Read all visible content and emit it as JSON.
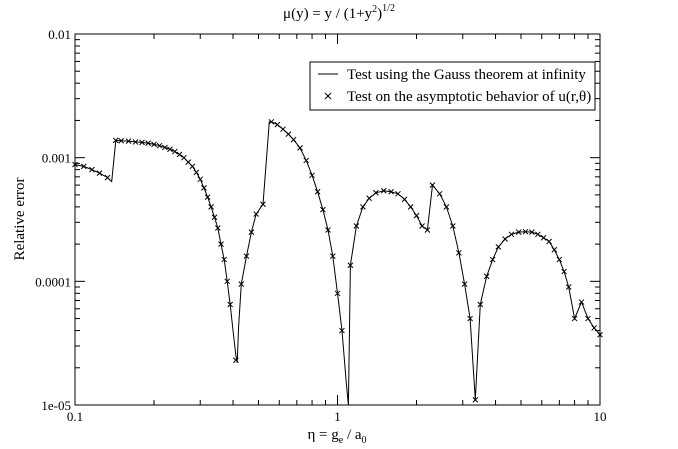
{
  "chart_data": {
    "type": "line",
    "title": {
      "mu": "μ(y) = y / (1+y",
      "sq": "2",
      "close": ")",
      "half": "1/2"
    },
    "xlabel": {
      "eta": "η = g",
      "e": "e",
      "mid": " / a",
      "zero": "0"
    },
    "ylabel": "Relative error",
    "x_scale": "log",
    "y_scale": "log",
    "xlim": [
      0.1,
      10
    ],
    "ylim": [
      1e-05,
      0.01
    ],
    "x_ticks": [
      {
        "value": 0.1,
        "label": "0.1"
      },
      {
        "value": 1,
        "label": "1"
      },
      {
        "value": 10,
        "label": "10"
      }
    ],
    "y_ticks": [
      {
        "value": 1e-05,
        "label": "1e-05"
      },
      {
        "value": 0.0001,
        "label": "0.0001"
      },
      {
        "value": 0.001,
        "label": "0.001"
      },
      {
        "value": 0.01,
        "label": "0.01"
      }
    ],
    "grid": false,
    "legend_position": "top-right",
    "legend": [
      {
        "label": "Test using the Gauss theorem at infinity",
        "marker": "line"
      },
      {
        "label": "Test on the asymptotic behavior of u(r,θ)",
        "marker": "x"
      }
    ],
    "series": [
      {
        "style": "line",
        "color": "#000000",
        "x": [
          0.1,
          0.108,
          0.116,
          0.124,
          0.133,
          0.138,
          0.143,
          0.15,
          0.16,
          0.17,
          0.18,
          0.19,
          0.2,
          0.21,
          0.22,
          0.23,
          0.24,
          0.25,
          0.26,
          0.27,
          0.28,
          0.29,
          0.3,
          0.31,
          0.32,
          0.33,
          0.34,
          0.35,
          0.36,
          0.37,
          0.38,
          0.39,
          0.4,
          0.41,
          0.415,
          0.42,
          0.43,
          0.45,
          0.47,
          0.49,
          0.52,
          0.55,
          0.56,
          0.59,
          0.62,
          0.65,
          0.68,
          0.72,
          0.76,
          0.8,
          0.84,
          0.88,
          0.92,
          0.96,
          1.0,
          1.04,
          1.08,
          1.1,
          1.12,
          1.18,
          1.25,
          1.32,
          1.4,
          1.5,
          1.6,
          1.7,
          1.8,
          1.9,
          2.0,
          2.1,
          2.2,
          2.3,
          2.45,
          2.6,
          2.75,
          2.9,
          3.05,
          3.2,
          3.35,
          3.5,
          3.7,
          3.9,
          4.1,
          4.35,
          4.6,
          4.9,
          5.2,
          5.5,
          5.8,
          6.1,
          6.4,
          6.7,
          7.0,
          7.3,
          7.6,
          8.0,
          8.5,
          9.0,
          9.5,
          10.0
        ],
        "y": [
          0.00088,
          0.00085,
          0.0008,
          0.00075,
          0.00069,
          0.00064,
          0.00138,
          0.00137,
          0.00136,
          0.00134,
          0.00133,
          0.00131,
          0.00128,
          0.00125,
          0.00121,
          0.00117,
          0.00112,
          0.00106,
          0.001,
          0.00092,
          0.00085,
          0.00076,
          0.00067,
          0.00057,
          0.00048,
          0.0004,
          0.00033,
          0.00027,
          0.0002,
          0.00015,
          0.0001,
          6.5e-05,
          4e-05,
          2.5e-05,
          2.2e-05,
          4.3e-05,
          9.5e-05,
          0.00016,
          0.00025,
          0.00035,
          0.00042,
          0.00195,
          0.00195,
          0.00185,
          0.0017,
          0.00155,
          0.0014,
          0.0012,
          0.00095,
          0.00072,
          0.00053,
          0.00038,
          0.00026,
          0.00016,
          8e-05,
          4e-05,
          1.5e-05,
          1e-05,
          0.000135,
          0.00028,
          0.0004,
          0.00047,
          0.00052,
          0.00054,
          0.00053,
          0.00051,
          0.00046,
          0.0004,
          0.00034,
          0.00028,
          0.00026,
          0.0006,
          0.00051,
          0.0004,
          0.00028,
          0.00017,
          9.5e-05,
          5e-05,
          1.1e-05,
          6.5e-05,
          0.00011,
          0.00015,
          0.00019,
          0.00022,
          0.00024,
          0.00025,
          0.000252,
          0.00025,
          0.00024,
          0.000225,
          0.00021,
          0.00018,
          0.00015,
          0.00012,
          9e-05,
          5e-05,
          6.8e-05,
          5e-05,
          4.2e-05,
          3.7e-05
        ]
      },
      {
        "style": "marker",
        "marker": "x",
        "color": "#000000",
        "x": [
          0.1,
          0.108,
          0.116,
          0.124,
          0.133,
          0.143,
          0.15,
          0.16,
          0.17,
          0.18,
          0.19,
          0.2,
          0.21,
          0.22,
          0.23,
          0.24,
          0.25,
          0.26,
          0.27,
          0.28,
          0.29,
          0.3,
          0.31,
          0.32,
          0.33,
          0.34,
          0.35,
          0.36,
          0.37,
          0.38,
          0.39,
          0.41,
          0.43,
          0.45,
          0.47,
          0.49,
          0.52,
          0.56,
          0.59,
          0.62,
          0.65,
          0.68,
          0.72,
          0.76,
          0.8,
          0.84,
          0.88,
          0.92,
          0.96,
          1.0,
          1.04,
          1.12,
          1.18,
          1.25,
          1.32,
          1.4,
          1.5,
          1.6,
          1.7,
          1.8,
          1.9,
          2.0,
          2.1,
          2.2,
          2.3,
          2.45,
          2.6,
          2.75,
          2.9,
          3.05,
          3.2,
          3.35,
          3.5,
          3.7,
          3.9,
          4.1,
          4.35,
          4.6,
          4.9,
          5.2,
          5.5,
          5.8,
          6.1,
          6.4,
          6.7,
          7.0,
          7.3,
          7.6,
          8.0,
          8.5,
          9.0,
          9.5,
          10.0
        ],
        "y": [
          0.00088,
          0.00085,
          0.0008,
          0.00075,
          0.00069,
          0.00138,
          0.00137,
          0.00136,
          0.00134,
          0.00133,
          0.00131,
          0.00128,
          0.00125,
          0.00121,
          0.00117,
          0.00112,
          0.00106,
          0.001,
          0.00092,
          0.00085,
          0.00076,
          0.00067,
          0.00057,
          0.00048,
          0.0004,
          0.00033,
          0.00027,
          0.0002,
          0.00015,
          0.0001,
          6.5e-05,
          2.3e-05,
          9.5e-05,
          0.00016,
          0.00025,
          0.00035,
          0.00042,
          0.00195,
          0.00185,
          0.0017,
          0.00155,
          0.0014,
          0.0012,
          0.00095,
          0.00072,
          0.00053,
          0.00038,
          0.00026,
          0.00016,
          8e-05,
          4e-05,
          0.000135,
          0.00028,
          0.0004,
          0.00047,
          0.00052,
          0.00054,
          0.00053,
          0.00051,
          0.00046,
          0.0004,
          0.00034,
          0.00028,
          0.00026,
          0.0006,
          0.00051,
          0.0004,
          0.00028,
          0.00017,
          9.5e-05,
          5e-05,
          1.1e-05,
          6.5e-05,
          0.00011,
          0.00015,
          0.00019,
          0.00022,
          0.00024,
          0.00025,
          0.000252,
          0.00025,
          0.00024,
          0.000225,
          0.00021,
          0.00018,
          0.00015,
          0.00012,
          9e-05,
          5e-05,
          6.8e-05,
          5e-05,
          4.2e-05,
          3.7e-05
        ]
      }
    ]
  }
}
